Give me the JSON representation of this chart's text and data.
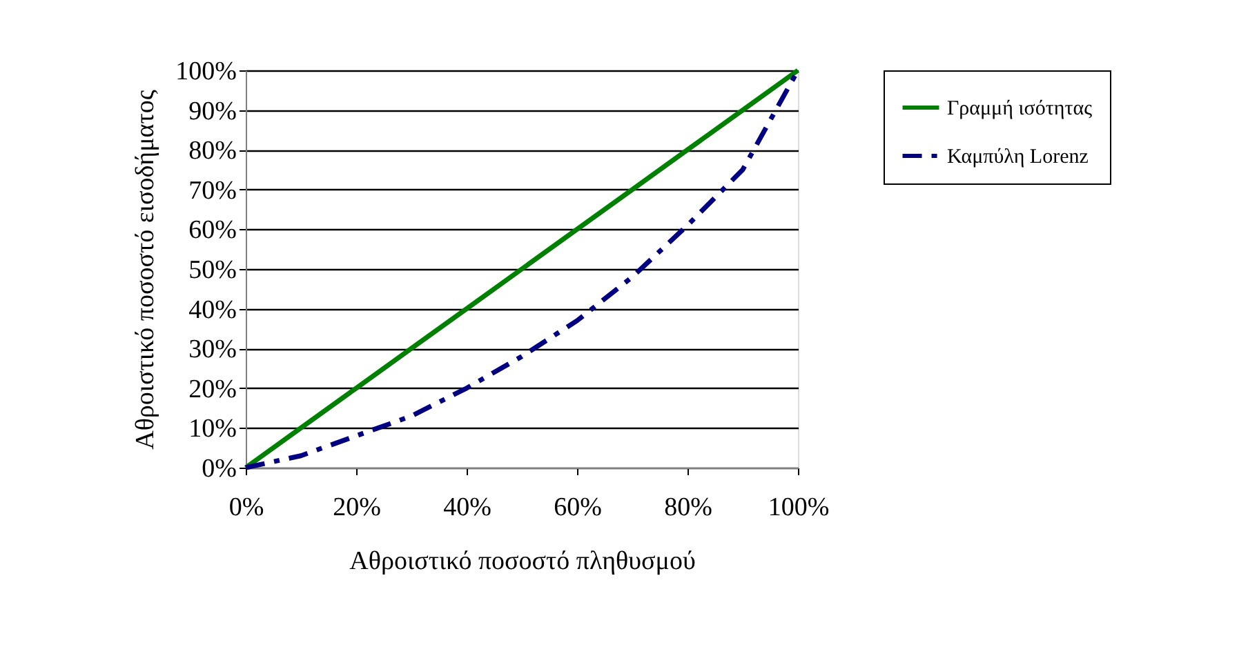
{
  "chart_data": {
    "type": "line",
    "xlabel": "Αθροιστικό ποσοστό πληθυσμού",
    "ylabel": "Αθροιστικό ποσοστό εισοδήματος",
    "x": [
      0,
      10,
      20,
      30,
      40,
      50,
      60,
      70,
      80,
      90,
      100
    ],
    "series": [
      {
        "name": "Γραμμή ισότητας",
        "color": "#008000",
        "line_style": "solid",
        "values": [
          0,
          10,
          20,
          30,
          40,
          50,
          60,
          70,
          80,
          90,
          100
        ]
      },
      {
        "name": "Καμπύλη Lorenz",
        "color": "#000080",
        "line_style": "dashed",
        "values": [
          0,
          3,
          8,
          13,
          20,
          28,
          37,
          48,
          61,
          75,
          100
        ]
      }
    ],
    "xlim": [
      0,
      100
    ],
    "ylim": [
      0,
      100
    ],
    "xticks": [
      {
        "value": 0,
        "label": "0%"
      },
      {
        "value": 20,
        "label": "20%"
      },
      {
        "value": 40,
        "label": "40%"
      },
      {
        "value": 60,
        "label": "60%"
      },
      {
        "value": 80,
        "label": "80%"
      },
      {
        "value": 100,
        "label": "100%"
      }
    ],
    "yticks": [
      {
        "value": 0,
        "label": "0%"
      },
      {
        "value": 10,
        "label": "10%"
      },
      {
        "value": 20,
        "label": "20%"
      },
      {
        "value": 30,
        "label": "30%"
      },
      {
        "value": 40,
        "label": "40%"
      },
      {
        "value": 50,
        "label": "50%"
      },
      {
        "value": 60,
        "label": "60%"
      },
      {
        "value": 70,
        "label": "70%"
      },
      {
        "value": 80,
        "label": "80%"
      },
      {
        "value": 90,
        "label": "90%"
      },
      {
        "value": 100,
        "label": "100%"
      }
    ],
    "grid": "y",
    "legend": "right",
    "marker": "none"
  }
}
